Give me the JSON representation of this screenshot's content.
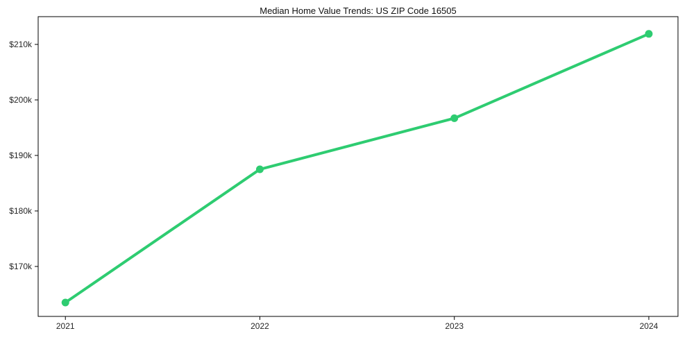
{
  "chart_data": {
    "type": "line",
    "title": "Median Home Value Trends: US ZIP Code 16505",
    "x": [
      2021,
      2022,
      2023,
      2024
    ],
    "series": [
      {
        "name": "median-home-value",
        "values": [
          163500,
          187500,
          196700,
          211900
        ],
        "color": "#2ecc71"
      }
    ],
    "xlabel": "",
    "ylabel": "",
    "x_ticks": [
      2021,
      2022,
      2023,
      2024
    ],
    "x_tick_labels": [
      "2021",
      "2022",
      "2023",
      "2024"
    ],
    "y_ticks": [
      170000,
      180000,
      190000,
      200000,
      210000
    ],
    "y_tick_labels": [
      "$170k",
      "$180k",
      "$190k",
      "$200k",
      "$210k"
    ],
    "xlim": [
      2020.86,
      2024.15
    ],
    "ylim": [
      161000,
      215000
    ],
    "grid": false,
    "legend_position": "none",
    "marker": "circle",
    "line_width": 4,
    "marker_radius": 5.5,
    "spine_color": "#000000",
    "tick_text_color": "#262626",
    "title_color": "#111111",
    "background_color": "#ffffff"
  },
  "layout_note": {}
}
